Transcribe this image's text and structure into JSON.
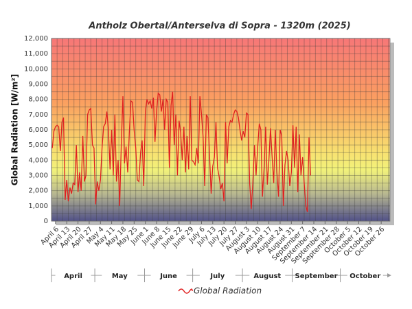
{
  "chart_data": {
    "type": "line",
    "title": "Antholz Obertal/Anterselva di Sopra - 1320m (2025)",
    "y_label": "Global Radiation [W/m²]",
    "ylim": [
      0,
      12000
    ],
    "yticks": [
      0,
      {
        "value": 1000,
        "label": "1,000"
      },
      {
        "value": 2000,
        "label": "2,000"
      },
      {
        "value": 3000,
        "label": "3,000"
      },
      {
        "value": 4000,
        "label": "4,000"
      },
      {
        "value": 5000,
        "label": "5,000"
      },
      {
        "value": 6000,
        "label": "6,000"
      },
      {
        "value": 7000,
        "label": "7,000"
      },
      {
        "value": 8000,
        "label": "8,000"
      },
      {
        "value": 9000,
        "label": "9,000"
      },
      {
        "value": 10000,
        "label": "10,000"
      },
      {
        "value": 11000,
        "label": "11,000"
      },
      {
        "value": 12000,
        "label": "12,000"
      }
    ],
    "grid": true,
    "legend": "bottom",
    "months": [
      "April",
      "May",
      "June",
      "July",
      "August",
      "September",
      "October"
    ],
    "categories": [
      null,
      null,
      "April 6",
      null,
      null,
      null,
      null,
      null,
      null,
      "April 13",
      null,
      null,
      null,
      null,
      null,
      null,
      "April 20",
      null,
      null,
      null,
      null,
      null,
      null,
      "April 27",
      null,
      null,
      null,
      null,
      null,
      null,
      "May 4",
      null,
      null,
      null,
      null,
      null,
      null,
      "May 11",
      null,
      null,
      null,
      null,
      null,
      null,
      "May 18",
      null,
      null,
      null,
      null,
      null,
      null,
      "May 25",
      null,
      null,
      null,
      null,
      null,
      null,
      "June 1",
      null,
      null,
      null,
      null,
      null,
      null,
      "June 8",
      null,
      null,
      null,
      null,
      null,
      null,
      "June 15",
      null,
      null,
      null,
      null,
      null,
      null,
      "June 22",
      null,
      null,
      null,
      null,
      null,
      null,
      "June 29",
      null,
      null,
      null,
      null,
      null,
      null,
      "July 6",
      null,
      null,
      null,
      null,
      null,
      null,
      "July 13",
      null,
      null,
      null,
      null,
      null,
      null,
      "July 20",
      null,
      null,
      null,
      null,
      null,
      null,
      "July 27",
      null,
      null,
      null,
      null,
      null,
      null,
      "August 3",
      null,
      null,
      null,
      null,
      null,
      null,
      "August 10",
      null,
      null,
      null,
      null,
      null,
      null,
      "August 17",
      null,
      null,
      null,
      null,
      null,
      null,
      "August 24",
      null,
      null,
      null,
      null,
      null,
      null,
      "August 31",
      null,
      null,
      null,
      null,
      null,
      null,
      "September 7",
      null,
      null,
      null,
      null,
      null,
      null,
      "September 14",
      null,
      null,
      null,
      null,
      null,
      null,
      "September 21",
      null,
      null,
      null,
      null,
      null,
      null,
      "September 28",
      null,
      null,
      null,
      null,
      null,
      null,
      "October 5",
      null,
      null,
      null,
      null,
      null,
      null,
      "October 12",
      null,
      null,
      null,
      null,
      null,
      null,
      "October 19",
      null,
      null,
      null,
      null,
      null,
      null,
      "October 26",
      null,
      null,
      null,
      null,
      null
    ],
    "series": [
      {
        "name": "Global Radiation",
        "color": "#e02020",
        "values": [
          4800,
          5900,
          6200,
          6300,
          6200,
          4600,
          6500,
          6800,
          1400,
          2700,
          1300,
          2200,
          1800,
          2500,
          2400,
          5000,
          1900,
          3200,
          2000,
          5600,
          2600,
          3000,
          7000,
          7300,
          7400,
          5000,
          4800,
          1100,
          2600,
          2000,
          2700,
          4800,
          6200,
          6400,
          7200,
          6000,
          3400,
          6000,
          3000,
          7000,
          2600,
          4000,
          1000,
          5000,
          8200,
          3800,
          4900,
          3200,
          5800,
          7900,
          7800,
          6000,
          4800,
          2700,
          2600,
          4500,
          5300,
          2300,
          7200,
          8000,
          7700,
          7900,
          7400,
          8100,
          5200,
          7200,
          8400,
          8300,
          7200,
          8000,
          6000,
          8000,
          7800,
          3500,
          7600,
          8500,
          5000,
          7000,
          3000,
          6600,
          5800,
          4000,
          6200,
          3200,
          5600,
          3400,
          8200,
          4000,
          3900,
          3700,
          4800,
          3800,
          8200,
          7000,
          5500,
          2300,
          7000,
          6800,
          4400,
          1800,
          3600,
          4200,
          6500,
          3500,
          2900,
          2100,
          2500,
          1300,
          6500,
          3800,
          6200,
          6600,
          6500,
          7000,
          7300,
          7200,
          6800,
          6000,
          5300,
          5900,
          5500,
          7100,
          7000,
          2500,
          800,
          2500,
          5000,
          3000,
          4800,
          6400,
          6000,
          1600,
          3500,
          6200,
          2400,
          4000,
          6100,
          4200,
          2500,
          6000,
          3200,
          1600,
          6000,
          5600,
          1000,
          3700,
          4600,
          4000,
          2300,
          3200,
          6300,
          3500,
          6200,
          1900,
          5700,
          3000,
          4200,
          2500,
          1000,
          600,
          5500,
          3000,
          null,
          null,
          null,
          null,
          null,
          null,
          null,
          null,
          null,
          null,
          null,
          null,
          null,
          null,
          null,
          null,
          null,
          null,
          null,
          null,
          null,
          null,
          null,
          null,
          null,
          null,
          null,
          null,
          null,
          null,
          null,
          null,
          null,
          null,
          null,
          null,
          null,
          null,
          null,
          null,
          null,
          null,
          null,
          null,
          null,
          null,
          null,
          null,
          null
        ]
      }
    ]
  }
}
